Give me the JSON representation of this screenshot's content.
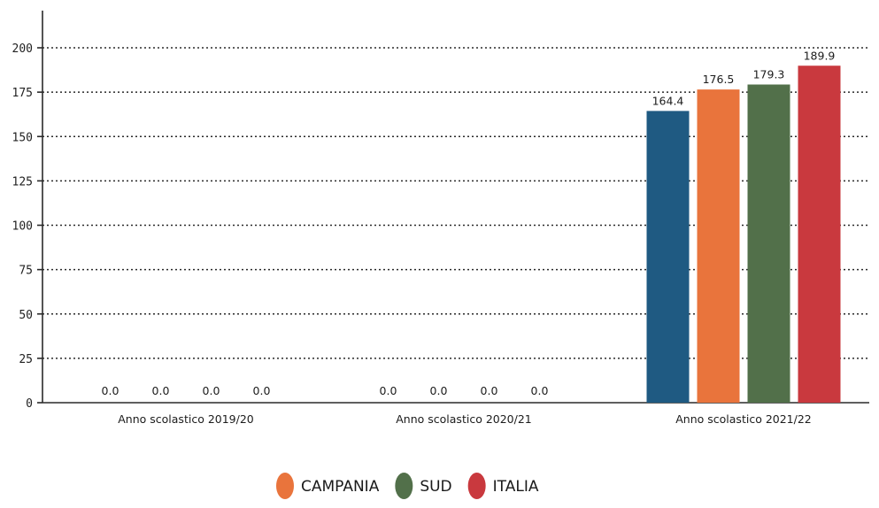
{
  "chart_data": {
    "type": "bar",
    "title": "",
    "xlabel": "",
    "ylabel": "",
    "categories": [
      "Anno scolastico 2019/20",
      "Anno scolastico 2020/21",
      "Anno scolastico 2021/22"
    ],
    "series": [
      {
        "values": [
          0.0,
          0.0,
          164.4
        ],
        "labels": [
          "0.0",
          "0.0",
          "164.4"
        ],
        "color": "#1f5a82"
      },
      {
        "name": "CAMPANIA",
        "values": [
          0.0,
          0.0,
          176.5
        ],
        "labels": [
          "0.0",
          "0.0",
          "176.5"
        ],
        "color": "#e9743c"
      },
      {
        "name": "SUD",
        "values": [
          0.0,
          0.0,
          179.3
        ],
        "labels": [
          "0.0",
          "0.0",
          "179.3"
        ],
        "color": "#52704a"
      },
      {
        "name": "ITALIA",
        "values": [
          0.0,
          0.0,
          189.9
        ],
        "labels": [
          "0.0",
          "0.0",
          "189.9"
        ],
        "color": "#c9393e"
      }
    ],
    "ylim": [
      0,
      200
    ],
    "yticks": [
      0,
      25,
      50,
      75,
      100,
      125,
      150,
      175,
      200
    ],
    "grid": true,
    "legend_position": "bottom-center"
  }
}
